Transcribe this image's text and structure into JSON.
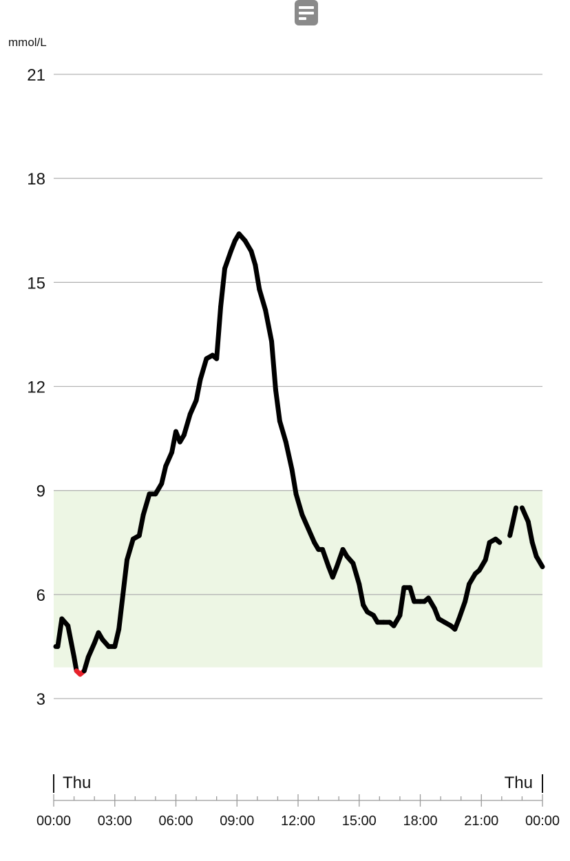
{
  "menu": {
    "icon": "menu-lines-icon"
  },
  "chart_data": {
    "type": "line",
    "ylabel": "mmol/L",
    "ylim": [
      3,
      21
    ],
    "yticks": [
      "3",
      "6",
      "9",
      "12",
      "15",
      "18",
      "21"
    ],
    "target_range": [
      3.9,
      9.0
    ],
    "low_threshold": 3.9,
    "grid": true,
    "day_start_label": "Thu",
    "day_end_label": "Thu",
    "xtick_labels": [
      "00:00",
      "03:00",
      "06:00",
      "09:00",
      "12:00",
      "15:00",
      "18:00",
      "21:00",
      "00:00"
    ],
    "xlim_hours": [
      0,
      24
    ],
    "colors": {
      "line": "#000000",
      "low": "#e8212b",
      "target_fill": "#edf6e4",
      "grid": "#b4b4b4"
    },
    "series": [
      {
        "segments": [
          [
            [
              0.1,
              4.5
            ],
            [
              0.2,
              4.5
            ],
            [
              0.4,
              5.3
            ],
            [
              0.7,
              5.1
            ],
            [
              1.0,
              4.2
            ],
            [
              1.12,
              3.8
            ],
            [
              1.3,
              3.7
            ],
            [
              1.5,
              3.8
            ],
            [
              1.7,
              4.2
            ],
            [
              2.0,
              4.6
            ],
            [
              2.2,
              4.9
            ],
            [
              2.4,
              4.7
            ],
            [
              2.7,
              4.5
            ],
            [
              3.0,
              4.5
            ],
            [
              3.2,
              5.0
            ],
            [
              3.4,
              6.0
            ],
            [
              3.6,
              7.0
            ],
            [
              3.9,
              7.6
            ],
            [
              4.2,
              7.7
            ],
            [
              4.4,
              8.3
            ],
            [
              4.7,
              8.9
            ],
            [
              5.0,
              8.9
            ],
            [
              5.3,
              9.2
            ],
            [
              5.5,
              9.7
            ],
            [
              5.8,
              10.1
            ],
            [
              6.0,
              10.7
            ],
            [
              6.2,
              10.4
            ],
            [
              6.4,
              10.6
            ],
            [
              6.7,
              11.2
            ],
            [
              7.0,
              11.6
            ],
            [
              7.2,
              12.2
            ],
            [
              7.5,
              12.8
            ],
            [
              7.8,
              12.9
            ],
            [
              8.0,
              12.8
            ],
            [
              8.2,
              14.3
            ],
            [
              8.4,
              15.4
            ],
            [
              8.7,
              15.9
            ],
            [
              8.9,
              16.2
            ],
            [
              9.1,
              16.4
            ],
            [
              9.4,
              16.2
            ],
            [
              9.7,
              15.9
            ],
            [
              9.9,
              15.5
            ],
            [
              10.1,
              14.8
            ],
            [
              10.4,
              14.2
            ],
            [
              10.7,
              13.3
            ],
            [
              10.9,
              11.9
            ],
            [
              11.1,
              11.0
            ],
            [
              11.4,
              10.4
            ],
            [
              11.7,
              9.6
            ],
            [
              11.9,
              8.9
            ],
            [
              12.2,
              8.3
            ],
            [
              12.5,
              7.9
            ],
            [
              12.8,
              7.5
            ],
            [
              13.0,
              7.3
            ],
            [
              13.2,
              7.3
            ],
            [
              13.5,
              6.8
            ],
            [
              13.7,
              6.5
            ],
            [
              13.9,
              6.8
            ],
            [
              14.2,
              7.3
            ],
            [
              14.4,
              7.1
            ],
            [
              14.7,
              6.9
            ],
            [
              15.0,
              6.3
            ],
            [
              15.2,
              5.7
            ],
            [
              15.4,
              5.5
            ],
            [
              15.7,
              5.4
            ],
            [
              15.9,
              5.2
            ],
            [
              16.2,
              5.2
            ],
            [
              16.5,
              5.2
            ],
            [
              16.7,
              5.1
            ],
            [
              17.0,
              5.4
            ],
            [
              17.2,
              6.2
            ],
            [
              17.5,
              6.2
            ],
            [
              17.7,
              5.8
            ],
            [
              18.0,
              5.8
            ],
            [
              18.2,
              5.8
            ],
            [
              18.4,
              5.9
            ],
            [
              18.7,
              5.6
            ],
            [
              18.9,
              5.3
            ],
            [
              19.2,
              5.2
            ],
            [
              19.5,
              5.1
            ],
            [
              19.7,
              5.0
            ],
            [
              19.9,
              5.3
            ],
            [
              20.2,
              5.8
            ],
            [
              20.4,
              6.3
            ],
            [
              20.7,
              6.6
            ],
            [
              20.9,
              6.7
            ],
            [
              21.2,
              7.0
            ],
            [
              21.4,
              7.5
            ],
            [
              21.7,
              7.6
            ],
            [
              21.9,
              7.5
            ]
          ],
          [
            [
              22.4,
              7.7
            ],
            [
              22.7,
              8.5
            ]
          ],
          [
            [
              23.0,
              8.5
            ],
            [
              23.3,
              8.1
            ],
            [
              23.5,
              7.5
            ],
            [
              23.7,
              7.1
            ],
            [
              24.0,
              6.8
            ]
          ]
        ]
      }
    ]
  }
}
